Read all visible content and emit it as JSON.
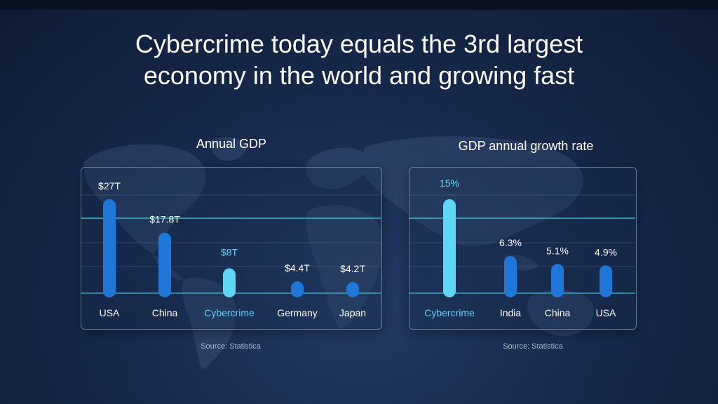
{
  "slide": {
    "title_line1": "Cybercrime today equals the 3rd largest",
    "title_line2": "economy in the world and growing fast"
  },
  "colors": {
    "bar": "#1f78d8",
    "highlight": "#5fd6f4",
    "reference_line": "#2fc2e0"
  },
  "chart_data": [
    {
      "type": "bar",
      "title": "Annual GDP",
      "source": "Source: Statistica",
      "unit": "trillion USD",
      "categories": [
        "USA",
        "China",
        "Cybercrime",
        "Germany",
        "Japan"
      ],
      "values": [
        27,
        17.8,
        8,
        4.4,
        4.2
      ],
      "labels": [
        "$27T",
        "$17.8T",
        "$8T",
        "$4.4T",
        "$4.2T"
      ],
      "highlight": "Cybercrime",
      "ylim": [
        0,
        27
      ]
    },
    {
      "type": "bar",
      "title": "GDP annual growth rate",
      "source": "Source: Statistica",
      "unit": "percent",
      "categories": [
        "Cybercrime",
        "India",
        "China",
        "USA"
      ],
      "values": [
        15,
        6.3,
        5.1,
        4.9
      ],
      "labels": [
        "15%",
        "6.3%",
        "5.1%",
        "4.9%"
      ],
      "highlight": "Cybercrime",
      "ylim": [
        0,
        15
      ]
    }
  ]
}
